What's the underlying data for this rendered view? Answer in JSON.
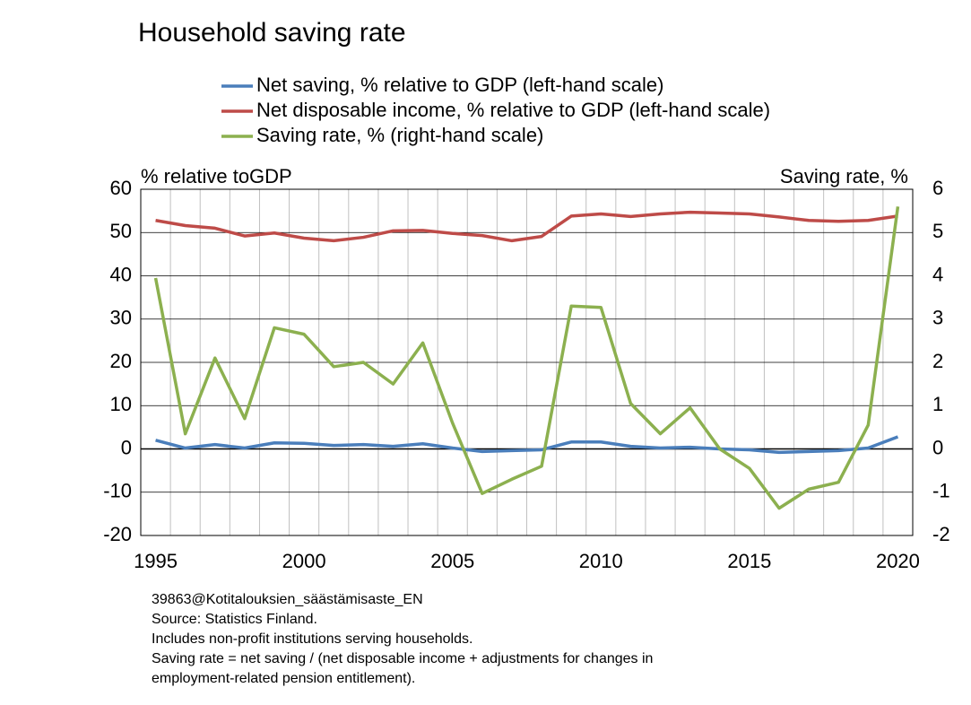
{
  "chart_data": {
    "type": "line",
    "title": "Household saving rate",
    "ylabel": "% relative toGDP",
    "y2label": "Saving rate, %",
    "categories": [
      1995,
      null,
      null,
      null,
      null,
      2000,
      null,
      null,
      null,
      null,
      2005,
      null,
      null,
      null,
      null,
      2010,
      null,
      null,
      null,
      null,
      2015,
      null,
      null,
      null,
      null,
      2020
    ],
    "series": [
      {
        "name": "Net saving, % relative to GDP (left-hand scale)",
        "color": "#4a7ebb",
        "axis": "y",
        "values": [
          2.0,
          0.2,
          1.0,
          0.2,
          1.4,
          1.3,
          0.8,
          1.0,
          0.6,
          1.2,
          0.2,
          -0.6,
          -0.4,
          -0.2,
          1.6,
          1.6,
          0.6,
          0.2,
          0.4,
          0.0,
          -0.2,
          -0.8,
          -0.6,
          -0.4,
          0.2,
          2.8
        ]
      },
      {
        "name": "Net disposable income, % relative to GDP (left-hand scale)",
        "color": "#be4b48",
        "axis": "y",
        "values": [
          52.8,
          51.6,
          51.0,
          49.2,
          49.9,
          48.7,
          48.1,
          48.9,
          50.4,
          50.5,
          49.8,
          49.3,
          48.1,
          49.1,
          53.8,
          54.3,
          53.7,
          54.3,
          54.7,
          54.5,
          54.3,
          53.6,
          52.8,
          52.6,
          52.8,
          53.8
        ]
      },
      {
        "name": "Saving rate, % (right-hand scale)",
        "color": "#8cb04f",
        "axis": "y2",
        "values": [
          3.95,
          0.35,
          2.1,
          0.7,
          2.8,
          2.65,
          1.9,
          2.0,
          1.5,
          2.45,
          0.6,
          -1.03,
          -0.7,
          -0.4,
          3.3,
          3.27,
          1.05,
          0.35,
          0.95,
          0.0,
          -0.45,
          -1.37,
          -0.93,
          -0.77,
          0.55,
          5.6
        ]
      }
    ],
    "ylim": [
      -20,
      60
    ],
    "yticks": [
      -20,
      -10,
      0,
      10,
      20,
      30,
      40,
      50,
      60
    ],
    "y2lim": [
      -2,
      6
    ],
    "y2ticks": [
      -2,
      -1,
      0,
      1,
      2,
      3,
      4,
      5,
      6
    ],
    "grid": true,
    "legend": "top",
    "notes": [
      "39863@Kotitalouksien_säästämisaste_EN",
      "Source: Statistics Finland.",
      "Includes non-profit institutions serving households.",
      "Saving rate = net saving / (net disposable income + adjustments for changes in",
      "employment-related pension entitlement)."
    ]
  }
}
